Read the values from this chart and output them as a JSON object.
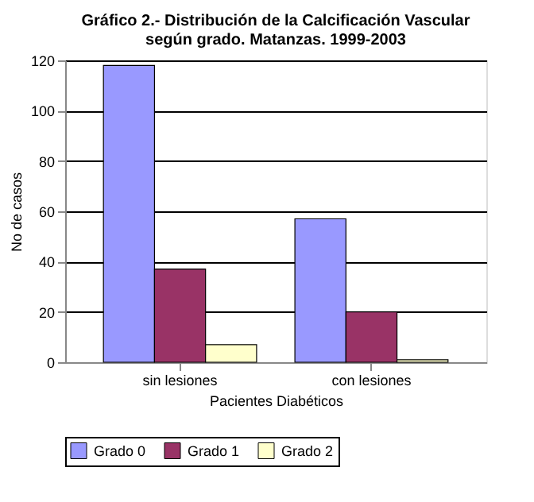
{
  "chart_data": {
    "type": "bar",
    "title": [
      "Gráfico 2.- Distribución de la Calcificación Vascular",
      "según grado. Matanzas. 1999-2003"
    ],
    "xlabel": "Pacientes Diabéticos",
    "ylabel": "No de casos",
    "categories": [
      "sin lesiones",
      "con lesiones"
    ],
    "series": [
      {
        "name": "Grado 0",
        "color": "#9999ff",
        "values": [
          118,
          57
        ]
      },
      {
        "name": "Grado 1",
        "color": "#993366",
        "values": [
          37,
          20
        ]
      },
      {
        "name": "Grado 2",
        "color": "#ffffcc",
        "values": [
          7,
          1
        ]
      }
    ],
    "ylim": [
      0,
      120
    ],
    "yticks": [
      0,
      20,
      40,
      60,
      80,
      100,
      120
    ],
    "grid": "y",
    "legend": "bottom"
  }
}
